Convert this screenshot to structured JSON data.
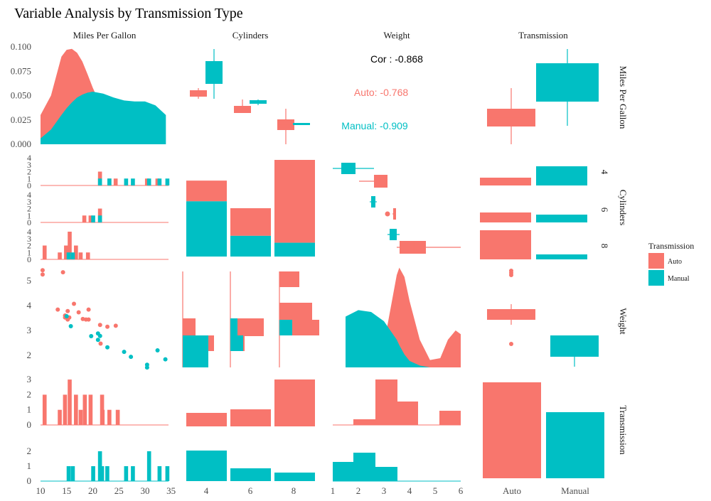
{
  "chart_data": {
    "type": "scatter-matrix",
    "title": "Variable Analysis by Transmission Type",
    "variables": [
      "Miles Per Gallon",
      "Cylinders",
      "Weight",
      "Transmission"
    ],
    "legend": {
      "title": "Transmission",
      "placement": "right",
      "entries": [
        {
          "name": "Auto",
          "color": "#F8766D"
        },
        {
          "name": "Manual",
          "color": "#00BFC4"
        }
      ]
    },
    "colors": {
      "auto": "#F8766D",
      "manual": "#00BFC4",
      "cor": "#000000"
    },
    "mpg_axis": {
      "ticks": [
        "10",
        "15",
        "20",
        "25",
        "30",
        "35"
      ],
      "range": [
        10,
        34.5
      ]
    },
    "mpg_density_axis": {
      "ticks": [
        "0.000",
        "0.025",
        "0.050",
        "0.075",
        "0.100"
      ],
      "range": [
        0,
        0.1
      ]
    },
    "weight_axis": {
      "ticks": [
        "1",
        "2",
        "3",
        "4",
        "5",
        "6"
      ],
      "range": [
        1,
        6
      ]
    },
    "weight_y_axis": {
      "ticks": [
        "2",
        "3",
        "4",
        "5"
      ]
    },
    "count_axis_small": {
      "ticks": [
        "0",
        "1",
        "2",
        "3",
        "4"
      ]
    },
    "count_axis_trans_auto": {
      "ticks": [
        "0",
        "1",
        "2",
        "3"
      ]
    },
    "count_axis_trans_manual": {
      "ticks": [
        "0",
        "1",
        "2"
      ]
    },
    "cyl_levels": [
      "4",
      "6",
      "8"
    ],
    "trans_levels": [
      "Auto",
      "Manual"
    ],
    "correlation": {
      "cor_label": "Cor : -0.868",
      "auto_label": "Auto: -0.768",
      "manual_label": "Manual: -0.909"
    },
    "points_auto": [
      [
        10.4,
        5.25
      ],
      [
        10.4,
        5.42
      ],
      [
        14.3,
        5.34
      ],
      [
        13.3,
        3.84
      ],
      [
        14.7,
        3.6
      ],
      [
        15.2,
        3.44
      ],
      [
        15.2,
        3.78
      ],
      [
        16.4,
        4.07
      ],
      [
        17.3,
        3.73
      ],
      [
        18.1,
        3.46
      ],
      [
        18.7,
        3.44
      ],
      [
        19.2,
        3.44
      ],
      [
        19.2,
        3.84
      ],
      [
        21.4,
        3.22
      ],
      [
        21.5,
        2.47
      ],
      [
        22.8,
        3.15
      ],
      [
        24.4,
        3.19
      ],
      [
        15.5,
        3.52
      ],
      [
        14.7,
        3.52
      ]
    ],
    "points_manual": [
      [
        15.0,
        3.57
      ],
      [
        15.8,
        3.17
      ],
      [
        19.7,
        2.77
      ],
      [
        21.0,
        2.62
      ],
      [
        21.0,
        2.88
      ],
      [
        22.8,
        2.32
      ],
      [
        26.0,
        2.14
      ],
      [
        27.3,
        1.94
      ],
      [
        30.4,
        1.62
      ],
      [
        30.4,
        1.51
      ],
      [
        32.4,
        2.2
      ],
      [
        33.9,
        1.84
      ],
      [
        21.4,
        2.78
      ]
    ],
    "mpg_density": {
      "x": [
        10,
        12,
        14,
        15,
        16,
        17,
        18,
        19,
        20,
        22,
        24,
        26,
        28,
        30,
        32,
        34
      ],
      "auto": [
        0.03,
        0.05,
        0.09,
        0.097,
        0.098,
        0.094,
        0.085,
        0.072,
        0.058,
        0.034,
        0.017,
        0.007,
        0.002,
        0.0,
        0.0,
        0.0
      ],
      "manual": [
        0.006,
        0.015,
        0.03,
        0.037,
        0.043,
        0.048,
        0.051,
        0.053,
        0.054,
        0.052,
        0.048,
        0.045,
        0.044,
        0.044,
        0.04,
        0.03
      ]
    },
    "weight_density": {
      "x": [
        1.5,
        2.0,
        2.5,
        3.0,
        3.3,
        3.5,
        3.6,
        3.8,
        4.0,
        4.4,
        4.8,
        5.2,
        5.5,
        5.8,
        6.0
      ],
      "auto": [
        0.0,
        0.0,
        0.02,
        0.25,
        0.7,
        1.0,
        1.08,
        0.98,
        0.72,
        0.3,
        0.08,
        0.1,
        0.3,
        0.4,
        0.36
      ],
      "manual": [
        0.55,
        0.62,
        0.6,
        0.5,
        0.38,
        0.3,
        0.24,
        0.14,
        0.07,
        0.02,
        0.0,
        0.0,
        0.0,
        0.0,
        0.0
      ]
    }
  }
}
